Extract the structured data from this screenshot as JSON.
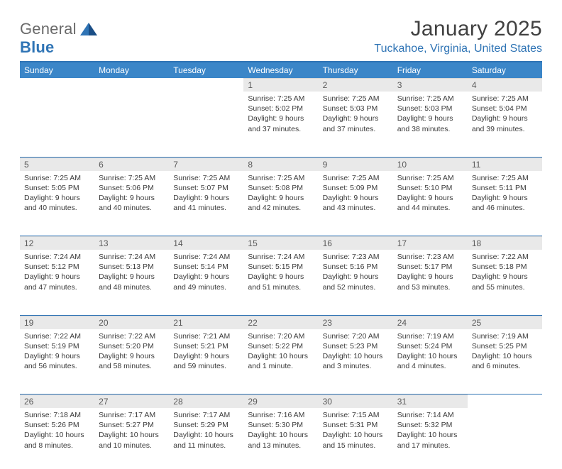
{
  "logo": {
    "general": "General",
    "blue": "Blue"
  },
  "title": "January 2025",
  "location": "Tuckahoe, Virginia, United States",
  "colors": {
    "accent": "#2f74b5",
    "header_bg": "#3b86c8",
    "daynum_bg": "#e9e9e9",
    "text": "#3b3b3b",
    "title_text": "#414141"
  },
  "weekdays": [
    "Sunday",
    "Monday",
    "Tuesday",
    "Wednesday",
    "Thursday",
    "Friday",
    "Saturday"
  ],
  "weeks": [
    [
      null,
      null,
      null,
      {
        "n": "1",
        "sr": "7:25 AM",
        "ss": "5:02 PM",
        "dl": "9 hours and 37 minutes."
      },
      {
        "n": "2",
        "sr": "7:25 AM",
        "ss": "5:03 PM",
        "dl": "9 hours and 37 minutes."
      },
      {
        "n": "3",
        "sr": "7:25 AM",
        "ss": "5:03 PM",
        "dl": "9 hours and 38 minutes."
      },
      {
        "n": "4",
        "sr": "7:25 AM",
        "ss": "5:04 PM",
        "dl": "9 hours and 39 minutes."
      }
    ],
    [
      {
        "n": "5",
        "sr": "7:25 AM",
        "ss": "5:05 PM",
        "dl": "9 hours and 40 minutes."
      },
      {
        "n": "6",
        "sr": "7:25 AM",
        "ss": "5:06 PM",
        "dl": "9 hours and 40 minutes."
      },
      {
        "n": "7",
        "sr": "7:25 AM",
        "ss": "5:07 PM",
        "dl": "9 hours and 41 minutes."
      },
      {
        "n": "8",
        "sr": "7:25 AM",
        "ss": "5:08 PM",
        "dl": "9 hours and 42 minutes."
      },
      {
        "n": "9",
        "sr": "7:25 AM",
        "ss": "5:09 PM",
        "dl": "9 hours and 43 minutes."
      },
      {
        "n": "10",
        "sr": "7:25 AM",
        "ss": "5:10 PM",
        "dl": "9 hours and 44 minutes."
      },
      {
        "n": "11",
        "sr": "7:25 AM",
        "ss": "5:11 PM",
        "dl": "9 hours and 46 minutes."
      }
    ],
    [
      {
        "n": "12",
        "sr": "7:24 AM",
        "ss": "5:12 PM",
        "dl": "9 hours and 47 minutes."
      },
      {
        "n": "13",
        "sr": "7:24 AM",
        "ss": "5:13 PM",
        "dl": "9 hours and 48 minutes."
      },
      {
        "n": "14",
        "sr": "7:24 AM",
        "ss": "5:14 PM",
        "dl": "9 hours and 49 minutes."
      },
      {
        "n": "15",
        "sr": "7:24 AM",
        "ss": "5:15 PM",
        "dl": "9 hours and 51 minutes."
      },
      {
        "n": "16",
        "sr": "7:23 AM",
        "ss": "5:16 PM",
        "dl": "9 hours and 52 minutes."
      },
      {
        "n": "17",
        "sr": "7:23 AM",
        "ss": "5:17 PM",
        "dl": "9 hours and 53 minutes."
      },
      {
        "n": "18",
        "sr": "7:22 AM",
        "ss": "5:18 PM",
        "dl": "9 hours and 55 minutes."
      }
    ],
    [
      {
        "n": "19",
        "sr": "7:22 AM",
        "ss": "5:19 PM",
        "dl": "9 hours and 56 minutes."
      },
      {
        "n": "20",
        "sr": "7:22 AM",
        "ss": "5:20 PM",
        "dl": "9 hours and 58 minutes."
      },
      {
        "n": "21",
        "sr": "7:21 AM",
        "ss": "5:21 PM",
        "dl": "9 hours and 59 minutes."
      },
      {
        "n": "22",
        "sr": "7:20 AM",
        "ss": "5:22 PM",
        "dl": "10 hours and 1 minute."
      },
      {
        "n": "23",
        "sr": "7:20 AM",
        "ss": "5:23 PM",
        "dl": "10 hours and 3 minutes."
      },
      {
        "n": "24",
        "sr": "7:19 AM",
        "ss": "5:24 PM",
        "dl": "10 hours and 4 minutes."
      },
      {
        "n": "25",
        "sr": "7:19 AM",
        "ss": "5:25 PM",
        "dl": "10 hours and 6 minutes."
      }
    ],
    [
      {
        "n": "26",
        "sr": "7:18 AM",
        "ss": "5:26 PM",
        "dl": "10 hours and 8 minutes."
      },
      {
        "n": "27",
        "sr": "7:17 AM",
        "ss": "5:27 PM",
        "dl": "10 hours and 10 minutes."
      },
      {
        "n": "28",
        "sr": "7:17 AM",
        "ss": "5:29 PM",
        "dl": "10 hours and 11 minutes."
      },
      {
        "n": "29",
        "sr": "7:16 AM",
        "ss": "5:30 PM",
        "dl": "10 hours and 13 minutes."
      },
      {
        "n": "30",
        "sr": "7:15 AM",
        "ss": "5:31 PM",
        "dl": "10 hours and 15 minutes."
      },
      {
        "n": "31",
        "sr": "7:14 AM",
        "ss": "5:32 PM",
        "dl": "10 hours and 17 minutes."
      },
      null
    ]
  ],
  "labels": {
    "sunrise": "Sunrise:",
    "sunset": "Sunset:",
    "daylight": "Daylight:"
  }
}
